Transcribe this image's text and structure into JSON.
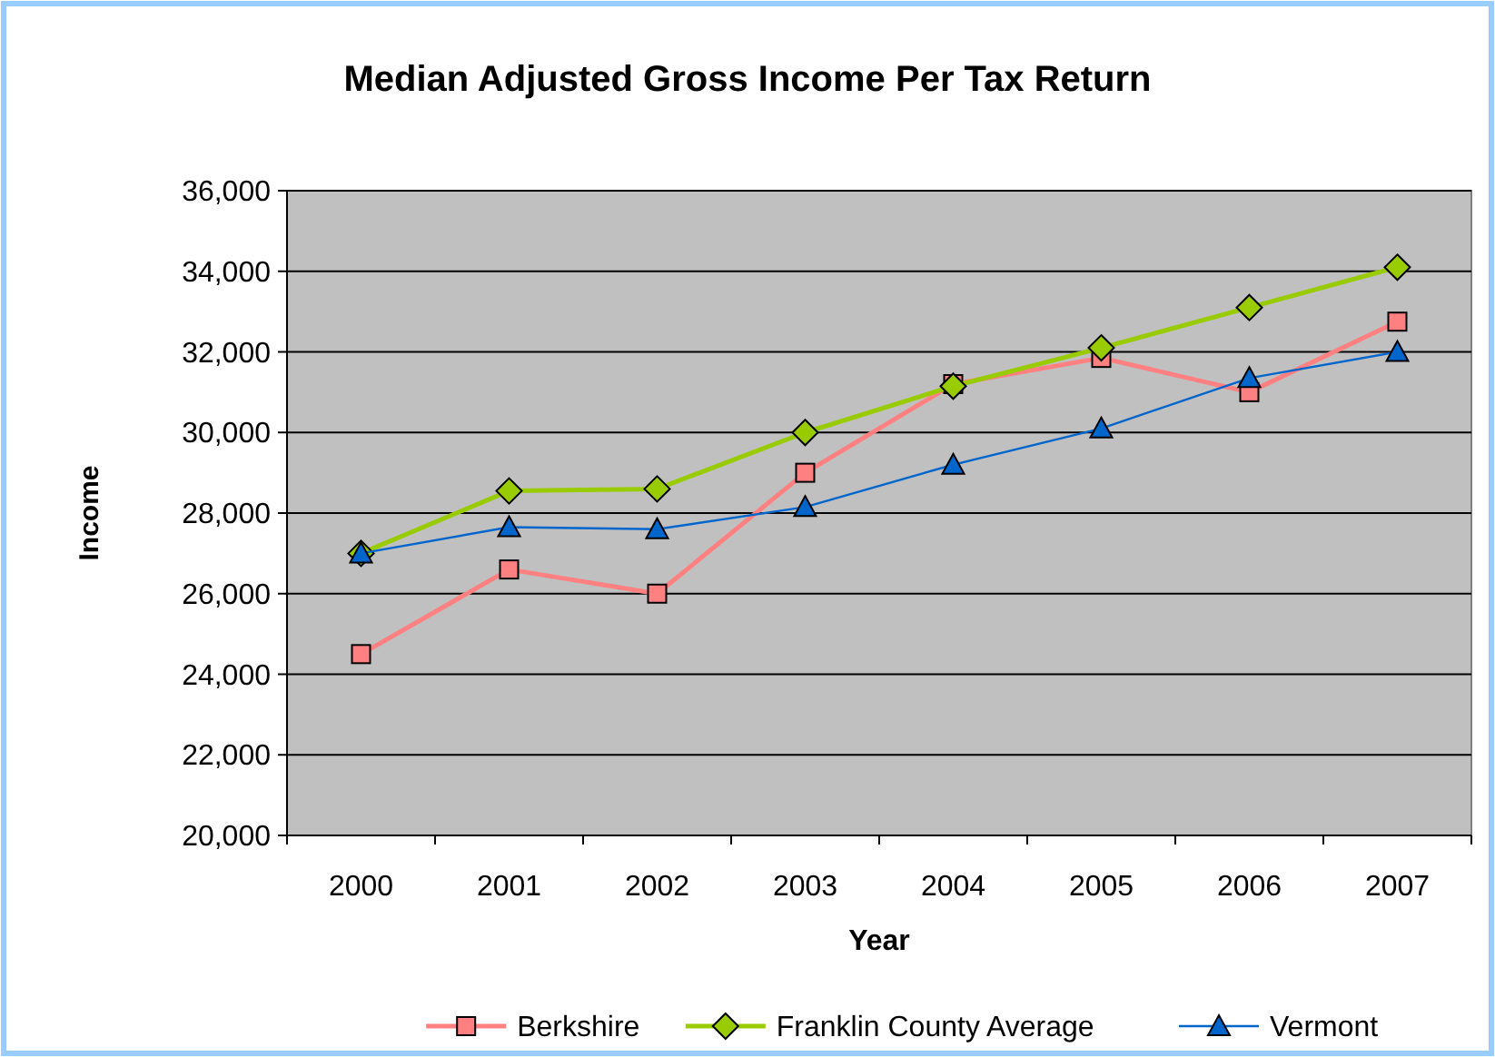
{
  "chart_data": {
    "type": "line",
    "title": "Median Adjusted Gross Income Per Tax Return",
    "xlabel": "Year",
    "ylabel": "Income",
    "categories": [
      "2000",
      "2001",
      "2002",
      "2003",
      "2004",
      "2005",
      "2006",
      "2007"
    ],
    "series": [
      {
        "name": "Berkshire",
        "color": "#ff8080",
        "marker": "square",
        "values": [
          24500,
          26600,
          26000,
          29000,
          31200,
          31850,
          31000,
          32750
        ]
      },
      {
        "name": "Franklin County Average",
        "color": "#99cc00",
        "marker": "diamond",
        "values": [
          27000,
          28550,
          28600,
          30000,
          31150,
          32100,
          33100,
          34100
        ]
      },
      {
        "name": "Vermont",
        "color": "#0066cc",
        "marker": "triangle",
        "values": [
          27000,
          27650,
          27600,
          28150,
          29200,
          30100,
          31350,
          32000
        ]
      }
    ],
    "ylim": [
      20000,
      36000
    ],
    "yticks": [
      {
        "value": 20000,
        "label": "20,000"
      },
      {
        "value": 22000,
        "label": "22,000"
      },
      {
        "value": 24000,
        "label": "24,000"
      },
      {
        "value": 26000,
        "label": "26,000"
      },
      {
        "value": 28000,
        "label": "28,000"
      },
      {
        "value": 30000,
        "label": "30,000"
      },
      {
        "value": 32000,
        "label": "32,000"
      },
      {
        "value": 34000,
        "label": "34,000"
      },
      {
        "value": 36000,
        "label": "36,000"
      }
    ],
    "grid": "y",
    "legend": "bottom"
  }
}
